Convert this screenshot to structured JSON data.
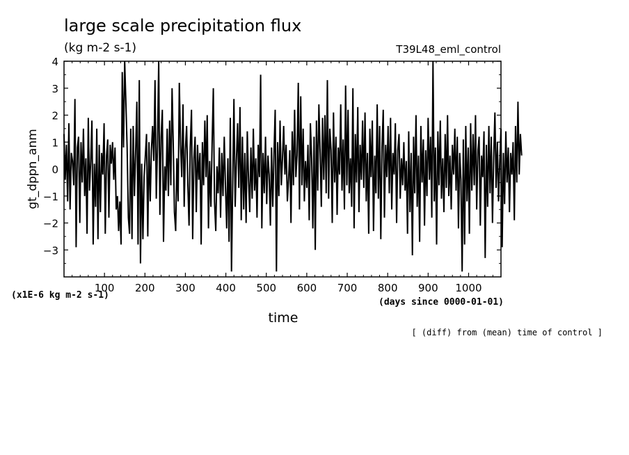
{
  "chart_data": {
    "type": "line",
    "title": "large scale precipitation flux",
    "units": "(kg m-2 s-1)",
    "run_name": "T39L48_eml_control",
    "ylabel": "gt_dppn_anm",
    "xlabel": "time",
    "y_scale_note": "(x1E-6 kg m-2 s-1)",
    "x_units_note": "(days since 0000-01-01)",
    "footer_note": "[ (diff) from (mean) time of control ]",
    "xlim": [
      0,
      1080
    ],
    "ylim": [
      -4,
      4
    ],
    "x_ticks": [
      "100",
      "200",
      "300",
      "400",
      "500",
      "600",
      "700",
      "800",
      "900",
      "1000"
    ],
    "y_ticks": [
      "4",
      "3",
      "2",
      "1",
      "0",
      "−1",
      "−2",
      "−3"
    ],
    "line_color": "#000000",
    "series": [
      {
        "x_start": 0,
        "x_step": 3,
        "values": [
          1.3,
          -0.4,
          0.9,
          -1.2,
          1.7,
          -1.5,
          0.6,
          0.3,
          -0.6,
          2.6,
          -2.9,
          0.8,
          1.2,
          -2.0,
          1.0,
          -0.5,
          1.5,
          -1.0,
          0.4,
          -2.4,
          1.9,
          -0.8,
          0.3,
          1.8,
          -2.8,
          0.2,
          -1.4,
          1.5,
          -2.6,
          0.9,
          -1.6,
          0.6,
          -0.2,
          1.7,
          -2.4,
          0.5,
          1.1,
          -1.8,
          0.9,
          0.2,
          1.0,
          -0.4,
          0.8,
          -1.5,
          -1.0,
          -2.3,
          -1.2,
          -2.8,
          3.6,
          0.8,
          4.0,
          2.4,
          0.8,
          -1.8,
          -2.4,
          1.5,
          -2.6,
          1.6,
          -1.0,
          0.6,
          2.5,
          -2.8,
          3.3,
          -3.5,
          0.2,
          -2.6,
          -0.3,
          0.5,
          1.3,
          -2.5,
          1.0,
          -1.2,
          0.7,
          1.6,
          0.3,
          3.3,
          -1.1,
          0.8,
          4.0,
          -1.7,
          1.2,
          2.2,
          -2.7,
          0.1,
          -0.8,
          1.5,
          -1.0,
          1.8,
          -0.6,
          3.0,
          0.9,
          -1.6,
          -2.3,
          0.4,
          -1.2,
          3.2,
          0.9,
          -0.3,
          2.4,
          -1.4,
          0.7,
          1.6,
          -0.5,
          -2.1,
          0.8,
          2.2,
          -2.6,
          0.4,
          1.2,
          -1.6,
          0.9,
          -0.4,
          0.6,
          -2.8,
          1.0,
          -0.6,
          1.8,
          -0.3,
          2.0,
          -2.2,
          0.3,
          -1.4,
          0.9,
          3.0,
          -1.2,
          -2.3,
          0.1,
          -0.9,
          0.8,
          -1.8,
          0.6,
          -1.0,
          1.2,
          -0.6,
          -2.2,
          0.4,
          -2.7,
          1.9,
          -3.8,
          -0.5,
          2.6,
          -1.4,
          0.3,
          1.7,
          -0.7,
          2.3,
          -1.9,
          1.2,
          -1.5,
          0.6,
          -2.0,
          1.4,
          -0.4,
          -1.6,
          0.8,
          -1.1,
          1.5,
          -0.8,
          0.4,
          -1.8,
          0.9,
          -0.3,
          3.5,
          -2.2,
          0.6,
          -0.9,
          1.2,
          -1.3,
          0.5,
          -0.2,
          -2.1,
          0.8,
          -1.4,
          0.6,
          2.2,
          -3.8,
          1.0,
          -1.0,
          1.8,
          -0.6,
          0.4,
          1.6,
          -0.2,
          0.9,
          -1.2,
          -0.4,
          0.7,
          -2.0,
          1.4,
          -0.6,
          2.2,
          -0.3,
          0.5,
          3.2,
          -1.5,
          2.7,
          -0.6,
          1.5,
          -1.2,
          0.3,
          -0.7,
          0.9,
          -1.9,
          1.7,
          0.4,
          -2.2,
          1.2,
          -3.0,
          1.8,
          -0.8,
          2.4,
          0.6,
          -1.4,
          1.9,
          -0.4,
          2.0,
          -0.9,
          3.3,
          -1.1,
          1.5,
          0.7,
          -2.0,
          2.1,
          -0.5,
          1.2,
          -1.7,
          0.8,
          -0.2,
          2.4,
          -0.8,
          1.1,
          -1.5,
          3.1,
          -0.6,
          2.2,
          -0.9,
          0.4,
          -1.4,
          3.0,
          -2.2,
          1.3,
          -0.5,
          2.3,
          -1.6,
          0.9,
          -0.4,
          1.8,
          -0.7,
          2.1,
          -1.2,
          0.6,
          -2.4,
          1.5,
          -0.3,
          1.8,
          -2.3,
          0.5,
          -0.9,
          2.4,
          -1.1,
          1.6,
          -2.6,
          0.8,
          2.2,
          -1.8,
          0.9,
          -0.3,
          1.6,
          -0.9,
          1.9,
          -1.5,
          0.6,
          -0.2,
          1.7,
          -2.0,
          0.7,
          1.3,
          -1.1,
          0.4,
          -0.6,
          1.0,
          -0.8,
          0.3,
          -2.4,
          1.4,
          -1.6,
          0.6,
          -3.2,
          1.2,
          -0.9,
          2.0,
          -1.4,
          0.5,
          -2.7,
          1.6,
          -0.5,
          1.1,
          -2.1,
          0.7,
          -1.0,
          1.9,
          -0.4,
          1.2,
          -1.8,
          4.0,
          -1.2,
          0.8,
          -2.8,
          1.4,
          -0.6,
          1.8,
          -1.1,
          0.4,
          -1.6,
          1.3,
          -0.7,
          2.0,
          -1.0,
          0.5,
          -1.5,
          0.9,
          -0.2,
          1.5,
          -0.8,
          1.2,
          -2.2,
          0.6,
          -0.4,
          -3.8,
          1.1,
          -2.8,
          1.6,
          -1.2,
          0.8,
          -2.4,
          1.7,
          -0.8,
          1.3,
          -0.6,
          2.0,
          -1.5,
          0.7,
          1.2,
          -2.1,
          0.5,
          -0.3,
          1.4,
          -3.3,
          0.9,
          -1.4,
          1.6,
          -0.9,
          1.2,
          -2.0,
          0.4,
          2.1,
          -0.7,
          1.0,
          -1.2,
          0.3,
          1.5,
          -2.9,
          0.6,
          -1.3,
          1.4,
          -0.5,
          0.8,
          -1.6,
          0.6,
          -0.2,
          1.0,
          -1.9,
          1.6,
          -0.5,
          2.5,
          -0.2,
          1.3,
          0.5
        ]
      }
    ]
  }
}
